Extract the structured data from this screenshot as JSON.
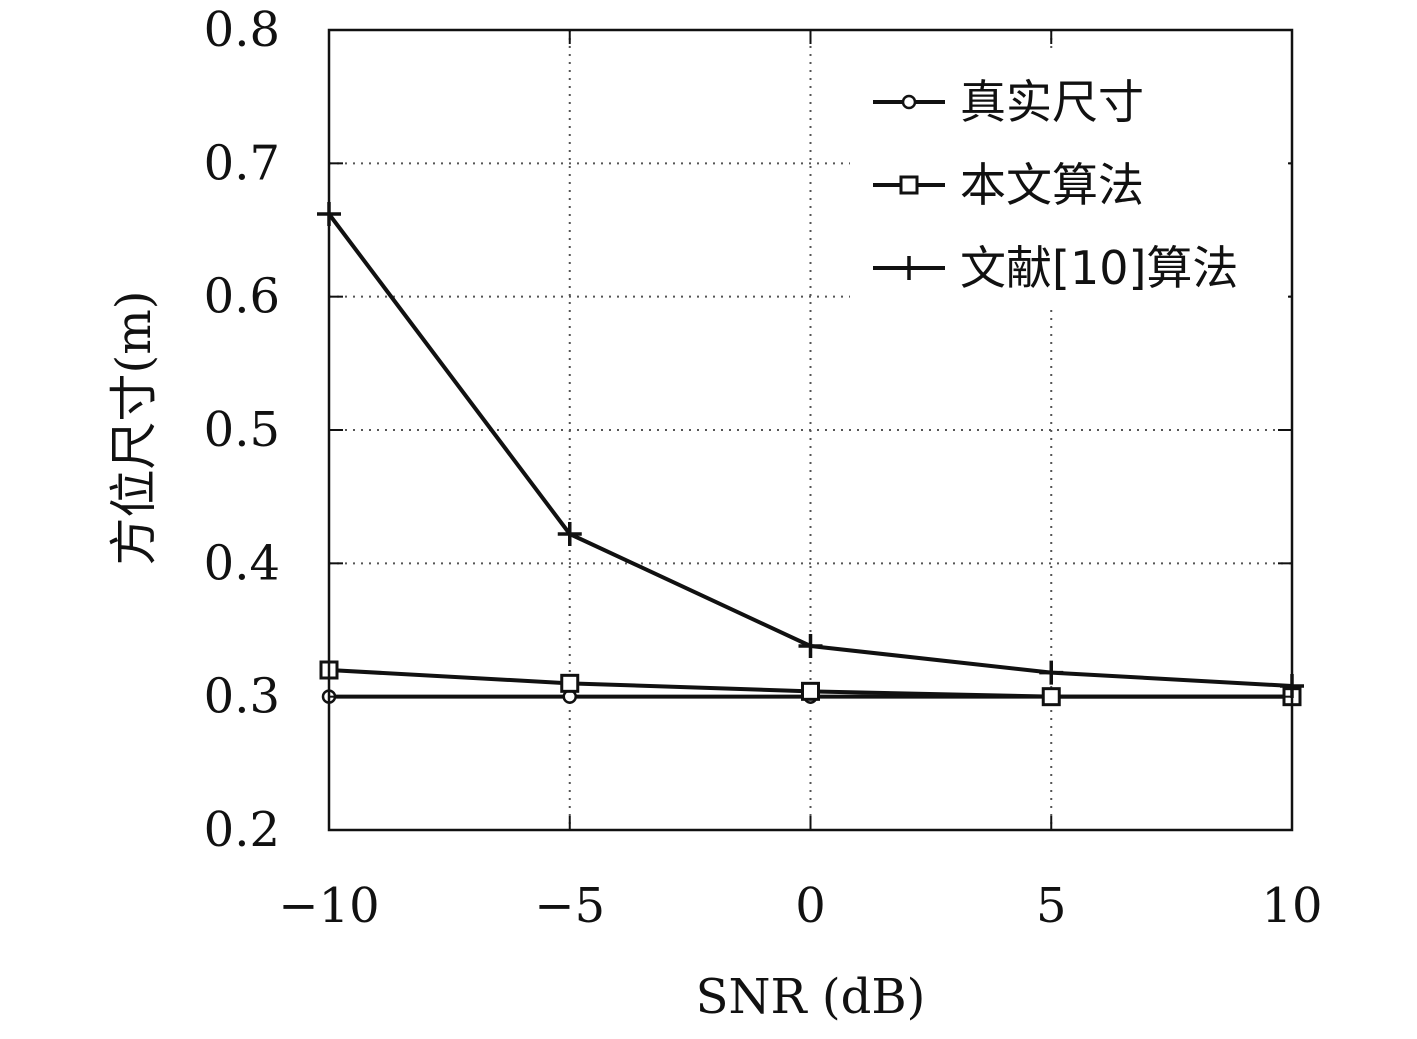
{
  "chart_data": {
    "type": "line",
    "x": [
      -10,
      -5,
      0,
      5,
      10
    ],
    "xlabel": "SNR (dB)",
    "ylabel": "方位尺寸(m)",
    "xlim": [
      -10,
      10
    ],
    "ylim": [
      0.2,
      0.8
    ],
    "xticks": [
      "−10",
      "−5",
      "0",
      "5",
      "10"
    ],
    "yticks": [
      "0.2",
      "0.3",
      "0.4",
      "0.5",
      "0.6",
      "0.7",
      "0.8"
    ],
    "grid": true,
    "legend_position": "top-right",
    "series": [
      {
        "name": "真实尺寸",
        "marker": "circle",
        "values": [
          0.3,
          0.3,
          0.3,
          0.3,
          0.3
        ]
      },
      {
        "name": "本文算法",
        "marker": "square",
        "values": [
          0.32,
          0.31,
          0.304,
          0.3,
          0.3
        ]
      },
      {
        "name": "文献[10]算法",
        "marker": "plus",
        "values": [
          0.662,
          0.422,
          0.338,
          0.318,
          0.308
        ]
      }
    ],
    "line_color": "#111111"
  }
}
